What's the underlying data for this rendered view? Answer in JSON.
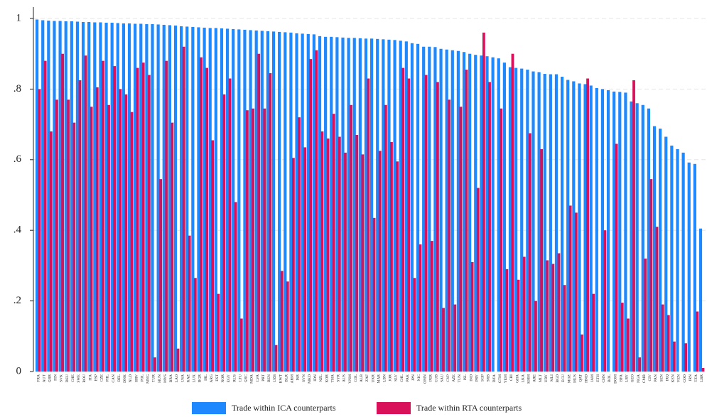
{
  "chart_data": {
    "type": "bar",
    "categories": [
      "FRA",
      "AUT",
      "GBR",
      "FIN",
      "SVK",
      "DEU",
      "CHE",
      "SWE",
      "ROU",
      "ITA",
      "ESP",
      "CZE",
      "PHL",
      "CAN",
      "BEL",
      "DNK",
      "NLD",
      "HRV",
      "POL",
      "MNG",
      "TUR",
      "HUN",
      "MYS",
      "BRA",
      "LAO",
      "USA",
      "KAZ",
      "LUX",
      "BGR",
      "IRL",
      "ARG",
      "EST",
      "NOR",
      "EGY",
      "RUS",
      "LTU",
      "GRC",
      "MDA",
      "LVA",
      "PRT",
      "BEN",
      "UZB",
      "KWT",
      "BLR",
      "ARM",
      "ISR",
      "SVN",
      "MKD",
      "IDN",
      "NZL",
      "KOR",
      "THA",
      "SYR",
      "AUS",
      "VNM",
      "COL",
      "ALB",
      "ZAF",
      "UKR",
      "MAR",
      "LBN",
      "JOR",
      "SLV",
      "CHL",
      "PAK",
      "JPN",
      "NIC",
      "OMN",
      "PER",
      "CUB",
      "SAU",
      "CYP",
      "AZE",
      "TUN",
      "ISL",
      "IND",
      "PRY",
      "SGP",
      "SRB",
      "DZA",
      "GTM",
      "YEM",
      "CRI",
      "GHA",
      "LKA",
      "KHM",
      "ARE",
      "MLT",
      "URY",
      "MLI",
      "BGD",
      "ECU",
      "MOZ",
      "MUS",
      "QAT",
      "HND",
      "JAM",
      "ETH",
      "CHN",
      "BOL",
      "DOM",
      "BFA",
      "LBY",
      "GEO",
      "NGA",
      "CMR",
      "CIV",
      "PAN",
      "SEN",
      "IRQ",
      "KEN",
      "VEN",
      "COD",
      "IRN",
      "TZA",
      "LBR"
    ],
    "series": [
      {
        "name": "Trade within ICA counterparts",
        "color": "#1e88ff",
        "values": [
          0.997,
          0.995,
          0.994,
          0.993,
          0.993,
          0.992,
          0.992,
          0.991,
          0.99,
          0.99,
          0.989,
          0.989,
          0.988,
          0.988,
          0.987,
          0.986,
          0.986,
          0.985,
          0.985,
          0.984,
          0.984,
          0.983,
          0.982,
          0.981,
          0.98,
          0.978,
          0.977,
          0.976,
          0.975,
          0.974,
          0.973,
          0.973,
          0.972,
          0.971,
          0.97,
          0.969,
          0.968,
          0.967,
          0.966,
          0.965,
          0.964,
          0.963,
          0.962,
          0.961,
          0.96,
          0.958,
          0.957,
          0.956,
          0.955,
          0.95,
          0.948,
          0.948,
          0.947,
          0.946,
          0.945,
          0.945,
          0.944,
          0.943,
          0.943,
          0.942,
          0.941,
          0.94,
          0.939,
          0.937,
          0.935,
          0.93,
          0.928,
          0.92,
          0.92,
          0.919,
          0.914,
          0.912,
          0.91,
          0.908,
          0.905,
          0.9,
          0.897,
          0.895,
          0.893,
          0.89,
          0.887,
          0.875,
          0.862,
          0.86,
          0.858,
          0.855,
          0.85,
          0.848,
          0.843,
          0.842,
          0.842,
          0.835,
          0.826,
          0.822,
          0.816,
          0.814,
          0.81,
          0.803,
          0.8,
          0.797,
          0.793,
          0.792,
          0.79,
          0.765,
          0.76,
          0.755,
          0.745,
          0.695,
          0.688,
          0.665,
          0.64,
          0.63,
          0.62,
          0.592,
          0.588,
          0.405
        ]
      },
      {
        "name": "Trade within RTA counterparts",
        "color": "#d8115a",
        "values": [
          0.8,
          0.88,
          0.68,
          0.77,
          0.9,
          0.77,
          0.705,
          0.825,
          0.895,
          0.75,
          0.805,
          0.88,
          0.755,
          0.865,
          0.8,
          0.785,
          0.735,
          0.86,
          0.875,
          0.84,
          0.04,
          0.545,
          0.88,
          0.705,
          0.065,
          0.92,
          0.385,
          0.265,
          0.89,
          0.86,
          0.655,
          0.22,
          0.785,
          0.83,
          0.48,
          0.15,
          0.74,
          0.745,
          0.9,
          0.745,
          0.845,
          0.075,
          0.285,
          0.255,
          0.605,
          0.72,
          0.635,
          0.885,
          0.91,
          0.68,
          0.66,
          0.73,
          0.665,
          0.62,
          0.755,
          0.67,
          0.615,
          0.83,
          0.435,
          0.625,
          0.755,
          0.65,
          0.595,
          0.86,
          0.83,
          0.265,
          0.36,
          0.84,
          0.37,
          0.82,
          0.18,
          0.77,
          0.19,
          0.75,
          0.855,
          0.31,
          0.52,
          0.96,
          0.82,
          0,
          0.745,
          0.29,
          0.9,
          0.26,
          0.325,
          0.675,
          0.2,
          0.63,
          0.315,
          0.305,
          0.335,
          0.245,
          0.47,
          0.45,
          0.105,
          0.83,
          0.22,
          0,
          0.4,
          0,
          0.645,
          0.195,
          0.15,
          0.825,
          0.04,
          0.32,
          0.545,
          0.41,
          0.19,
          0.16,
          0.085,
          0,
          0.08,
          0,
          0.17,
          0.01
        ]
      }
    ],
    "ylim": [
      0,
      1
    ],
    "yticks": [
      0,
      {
        "value": 0.2,
        "label": ".2"
      },
      {
        "value": 0.4,
        "label": ".4"
      },
      {
        "value": 0.6,
        "label": ".6"
      },
      {
        "value": 0.8,
        "label": ".8"
      },
      1
    ],
    "grid": true
  }
}
